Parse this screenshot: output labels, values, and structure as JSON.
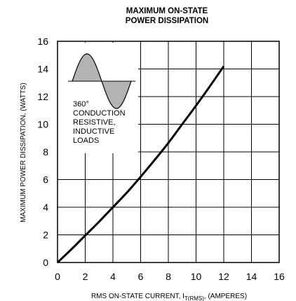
{
  "chart_data": {
    "type": "line",
    "title_line1": "MAXIMUM ON-STATE",
    "title_line2": "POWER DISSIPATION",
    "xlabel_prefix": "RMS ON-STATE CURRENT, I",
    "xlabel_sub": "T(RMS)",
    "xlabel_suffix": ", (AMPERES)",
    "ylabel": "MAXIMUM POWER DISSIPATION, (WATTS)",
    "xlim": [
      0,
      16
    ],
    "ylim": [
      0,
      16
    ],
    "x_ticks": [
      0,
      2,
      4,
      6,
      8,
      10,
      12,
      14,
      16
    ],
    "y_ticks": [
      0,
      2,
      4,
      6,
      8,
      10,
      12,
      14,
      16
    ],
    "grid": true,
    "line_color": "#000000",
    "inset_fill_color": "#b3b3b3",
    "series": [
      {
        "x": [
          0,
          1,
          2,
          3,
          4,
          5,
          6,
          7,
          8,
          9,
          10,
          11,
          12
        ],
        "values": [
          0,
          0.95,
          1.95,
          2.95,
          4.0,
          5.05,
          6.2,
          7.4,
          8.65,
          10.0,
          11.35,
          12.75,
          14.2
        ]
      }
    ],
    "annotation": {
      "lines": [
        "360°",
        "CONDUCTION",
        "RESISTIVE,",
        "INDUCTIVE",
        "LOADS"
      ]
    }
  }
}
